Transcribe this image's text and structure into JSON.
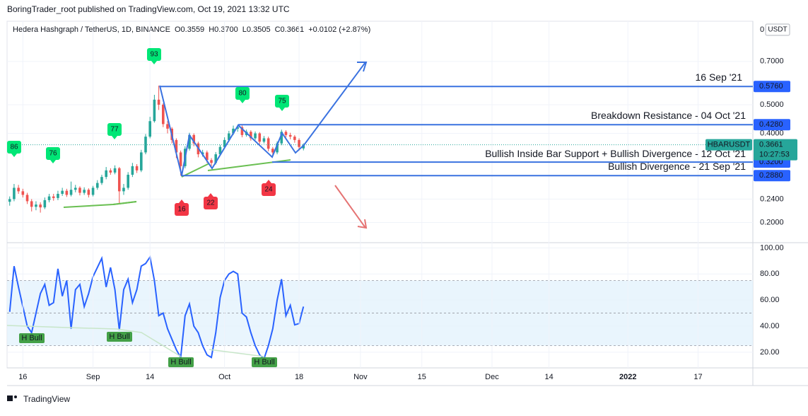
{
  "header": {
    "byline": "BoringTrader_root published on TradingView.com, Oct 19, 2021 13:32 UTC",
    "symbol": "Hedera Hashgraph / TetherUS, 1D, BINANCE",
    "ohlc": [
      {
        "key": "O",
        "value": "0.3559"
      },
      {
        "key": "H",
        "value": "0.3700"
      },
      {
        "key": "L",
        "value": "0.3505"
      },
      {
        "key": "C",
        "value": "0.3661"
      }
    ],
    "change": "+0.0102 (+2.87%)",
    "axis_top": "0",
    "currency": "USDT"
  },
  "chart_data": {
    "type": "candlestick",
    "log_scale": true,
    "up_color": "#26a69a",
    "down_color": "#ef5350",
    "x": [
      0,
      1,
      2,
      3,
      4,
      5,
      6,
      7,
      8,
      9,
      10,
      11,
      12,
      13,
      14,
      15,
      16,
      17,
      18,
      19,
      20,
      21,
      22,
      23,
      24,
      25,
      26,
      27,
      28,
      29,
      30,
      31,
      32,
      33,
      34,
      35,
      36,
      37,
      38,
      39,
      40,
      41,
      42,
      43,
      44,
      45,
      46,
      47,
      48,
      49,
      50,
      51,
      52,
      53,
      54,
      55,
      56,
      57,
      58,
      59,
      60,
      61,
      62,
      63,
      64,
      65,
      66,
      67
    ],
    "open": [
      0.235,
      0.24,
      0.262,
      0.255,
      0.248,
      0.236,
      0.226,
      0.23,
      0.225,
      0.238,
      0.245,
      0.242,
      0.25,
      0.256,
      0.248,
      0.258,
      0.262,
      0.252,
      0.258,
      0.248,
      0.262,
      0.272,
      0.285,
      0.3,
      0.295,
      0.305,
      0.255,
      0.262,
      0.29,
      0.31,
      0.3,
      0.345,
      0.39,
      0.44,
      0.52,
      0.5,
      0.43,
      0.415,
      0.38,
      0.345,
      0.31,
      0.355,
      0.395,
      0.37,
      0.34,
      0.345,
      0.325,
      0.318,
      0.34,
      0.36,
      0.38,
      0.4,
      0.415,
      0.42,
      0.395,
      0.405,
      0.385,
      0.4,
      0.375,
      0.385,
      0.355,
      0.345,
      0.37,
      0.405,
      0.395,
      0.39,
      0.38,
      0.3559
    ],
    "high": [
      0.245,
      0.27,
      0.268,
      0.26,
      0.252,
      0.24,
      0.236,
      0.234,
      0.243,
      0.25,
      0.25,
      0.256,
      0.262,
      0.26,
      0.275,
      0.268,
      0.265,
      0.263,
      0.261,
      0.266,
      0.278,
      0.29,
      0.308,
      0.305,
      0.312,
      0.308,
      0.27,
      0.296,
      0.318,
      0.315,
      0.352,
      0.398,
      0.455,
      0.54,
      0.58,
      0.505,
      0.44,
      0.42,
      0.385,
      0.35,
      0.362,
      0.402,
      0.4,
      0.375,
      0.352,
      0.35,
      0.33,
      0.346,
      0.366,
      0.388,
      0.408,
      0.425,
      0.428,
      0.425,
      0.412,
      0.41,
      0.406,
      0.404,
      0.392,
      0.39,
      0.36,
      0.376,
      0.412,
      0.41,
      0.402,
      0.395,
      0.385,
      0.37
    ],
    "low": [
      0.228,
      0.236,
      0.25,
      0.243,
      0.231,
      0.218,
      0.22,
      0.216,
      0.222,
      0.234,
      0.237,
      0.238,
      0.246,
      0.244,
      0.245,
      0.253,
      0.247,
      0.248,
      0.243,
      0.245,
      0.258,
      0.268,
      0.28,
      0.29,
      0.291,
      0.232,
      0.248,
      0.258,
      0.285,
      0.294,
      0.296,
      0.34,
      0.385,
      0.435,
      0.48,
      0.42,
      0.4,
      0.37,
      0.33,
      0.288,
      0.305,
      0.35,
      0.362,
      0.332,
      0.334,
      0.318,
      0.31,
      0.314,
      0.336,
      0.355,
      0.375,
      0.395,
      0.405,
      0.388,
      0.39,
      0.378,
      0.38,
      0.368,
      0.37,
      0.348,
      0.336,
      0.34,
      0.365,
      0.388,
      0.382,
      0.372,
      0.35,
      0.3505
    ],
    "close": [
      0.24,
      0.262,
      0.255,
      0.248,
      0.236,
      0.226,
      0.23,
      0.225,
      0.238,
      0.245,
      0.242,
      0.25,
      0.256,
      0.248,
      0.258,
      0.262,
      0.252,
      0.258,
      0.248,
      0.262,
      0.272,
      0.285,
      0.3,
      0.295,
      0.305,
      0.255,
      0.262,
      0.29,
      0.31,
      0.3,
      0.345,
      0.39,
      0.44,
      0.52,
      0.5,
      0.43,
      0.415,
      0.38,
      0.345,
      0.31,
      0.355,
      0.395,
      0.37,
      0.34,
      0.345,
      0.325,
      0.318,
      0.34,
      0.36,
      0.38,
      0.4,
      0.415,
      0.42,
      0.395,
      0.405,
      0.385,
      0.4,
      0.375,
      0.385,
      0.355,
      0.345,
      0.37,
      0.405,
      0.395,
      0.39,
      0.38,
      0.36,
      0.3661
    ],
    "xlim": [
      -0.6,
      169.5
    ],
    "xticks": [
      {
        "value": 3,
        "label": "16"
      },
      {
        "value": 19,
        "label": "Sep"
      },
      {
        "value": 32,
        "label": "14"
      },
      {
        "value": 49,
        "label": "Oct"
      },
      {
        "value": 66,
        "label": "18"
      },
      {
        "value": 80,
        "label": "Nov"
      },
      {
        "value": 94,
        "label": "15"
      },
      {
        "value": 110,
        "label": "Dec"
      },
      {
        "value": 123,
        "label": "14"
      },
      {
        "value": 141,
        "label": "2022"
      },
      {
        "value": 157,
        "label": "17"
      }
    ],
    "ylim": [
      0.171,
      0.957
    ],
    "yticks": [
      {
        "value": 0.7,
        "label": "0.7000"
      },
      {
        "value": 0.5,
        "label": "0.5000"
      },
      {
        "value": 0.4,
        "label": "0.4000"
      },
      {
        "value": 0.24,
        "label": "0.2400"
      },
      {
        "value": 0.2,
        "label": "0.2000"
      }
    ],
    "levels": [
      {
        "label": "16 Sep '21",
        "value": 0.576,
        "value_label": "0.5760"
      },
      {
        "label": "Breakdown Resistance - 04 Oct '21",
        "value": 0.428,
        "value_label": "0.4280"
      },
      {
        "label": "Bullish Inside Bar Support + Bullish Divergence - 12 Oct '21",
        "value": 0.32,
        "value_label": "0.3200"
      },
      {
        "label": "Bullish Divergence - 21 Sep '21",
        "value": 0.288,
        "value_label": "0.2880"
      }
    ],
    "last": {
      "name": "HBARUSDT",
      "value": 0.3661,
      "value_label": "0.3661",
      "countdown": "10:27:53"
    },
    "badges": [
      86,
      76,
      77,
      93,
      80,
      75,
      16,
      22,
      24
    ],
    "oscillator": {
      "color": "#2962ff",
      "values": [
        51,
        86,
        70,
        55,
        40,
        35,
        50,
        65,
        72,
        56,
        58,
        84,
        63,
        75,
        38,
        68,
        72,
        55,
        65,
        78,
        85,
        92,
        70,
        85,
        68,
        37,
        68,
        76,
        58,
        68,
        86,
        88,
        93,
        75,
        48,
        50,
        38,
        30,
        22,
        16,
        48,
        57,
        40,
        35,
        25,
        18,
        16,
        35,
        62,
        75,
        80,
        82,
        80,
        50,
        47,
        35,
        25,
        18,
        15,
        25,
        38,
        60,
        76,
        48,
        56,
        41,
        42,
        55
      ],
      "ylim": [
        8,
        104
      ],
      "yticks": [
        {
          "value": 100,
          "label": "100.00"
        },
        {
          "value": 80,
          "label": "80.00"
        },
        {
          "value": 60,
          "label": "60.00"
        },
        {
          "value": 40,
          "label": "40.00"
        },
        {
          "value": 20,
          "label": "20.00"
        }
      ],
      "levels": [
        25,
        50,
        75
      ],
      "divergence_labels": [
        "H Bull",
        "H Bull",
        "H Bull",
        "H Bull"
      ]
    }
  },
  "footer": "TradingView"
}
